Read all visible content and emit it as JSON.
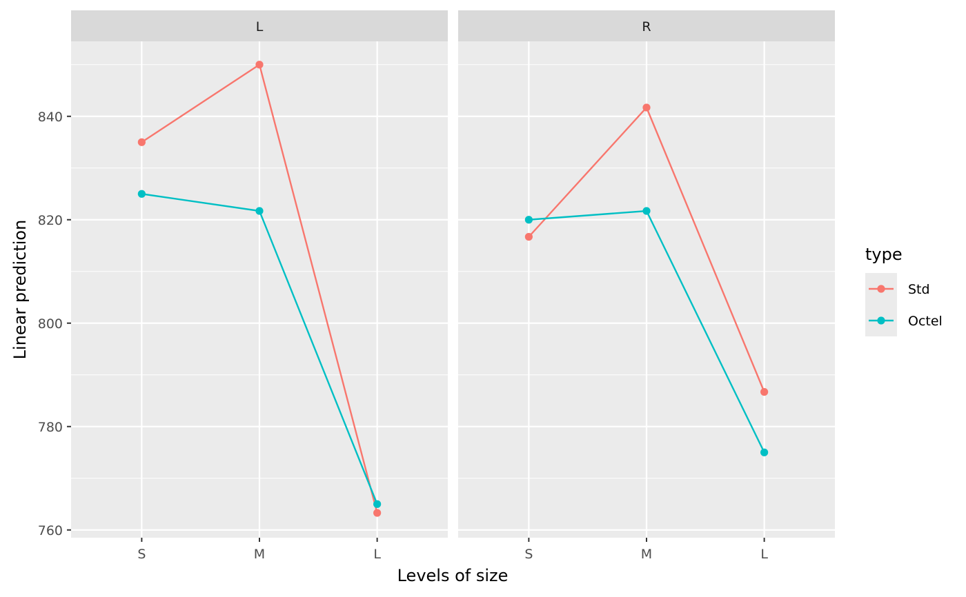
{
  "chart_data": {
    "type": "line",
    "facet_variable": "",
    "facets": [
      "L",
      "R"
    ],
    "categories": [
      "S",
      "M",
      "L"
    ],
    "xlabel": "Levels of size",
    "ylabel": "Linear prediction",
    "ylim": [
      758.5,
      854.5
    ],
    "yticks": [
      760,
      780,
      800,
      820,
      840
    ],
    "y_minor_ticks": [
      770,
      790,
      810,
      830,
      850
    ],
    "grid": true,
    "legend": {
      "title": "type",
      "position": "right",
      "entries": [
        "Std",
        "Octel"
      ]
    },
    "colors": {
      "Std": "#F8766D",
      "Octel": "#00BFC4",
      "panel_bg": "#EBEBEB",
      "strip_bg": "#D9D9D9",
      "grid": "#FFFFFF"
    },
    "panels": [
      {
        "facet": "L",
        "series": [
          {
            "name": "Std",
            "values": [
              835,
              850,
              763.3
            ]
          },
          {
            "name": "Octel",
            "values": [
              825,
              821.7,
              765
            ]
          }
        ]
      },
      {
        "facet": "R",
        "series": [
          {
            "name": "Std",
            "values": [
              816.7,
              841.7,
              786.7
            ]
          },
          {
            "name": "Octel",
            "values": [
              820,
              821.7,
              775
            ]
          }
        ]
      }
    ]
  }
}
